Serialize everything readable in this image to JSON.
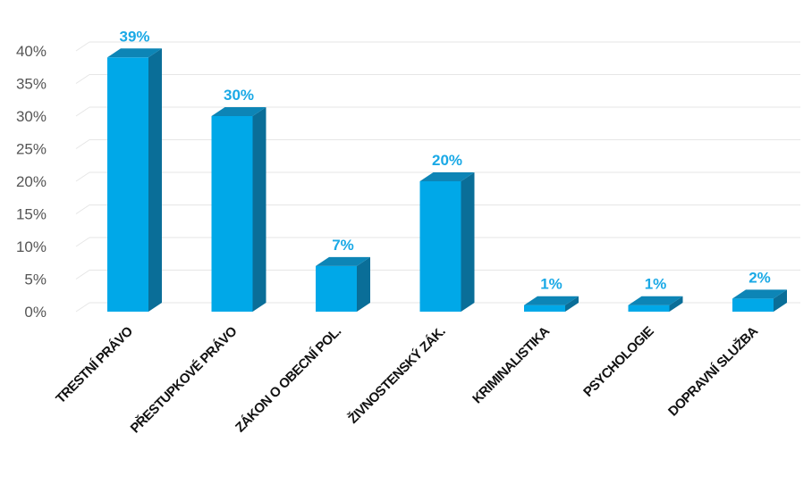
{
  "chart_data": {
    "type": "bar",
    "style": "3d-column",
    "categories": [
      "TRESTNÍ PRÁVO",
      "PŘESTUPKOVÉ PRÁVO",
      "ZÁKON O OBECNÍ POL.",
      "ŽIVNOSTENSKÝ ZÁK.",
      "KRIMINALISTIKA",
      "PSYCHOLOGIE",
      "DOPRAVNÍ SLUŽBA"
    ],
    "values": [
      39,
      30,
      7,
      20,
      1,
      1,
      2
    ],
    "value_labels": [
      "39%",
      "30%",
      "7%",
      "20%",
      "1%",
      "1%",
      "2%"
    ],
    "title": "",
    "xlabel": "",
    "ylabel": "",
    "ylim": [
      0,
      40
    ],
    "y_ticks": [
      0,
      5,
      10,
      15,
      20,
      25,
      30,
      35,
      40
    ],
    "y_tick_labels": [
      "0%",
      "5%",
      "10%",
      "15%",
      "20%",
      "25%",
      "30%",
      "35%",
      "40%"
    ],
    "grid": true,
    "legend": "none",
    "colors": {
      "bar_front": "#00a8e8",
      "bar_side": "#0a6e98",
      "bar_top": "#0d85b6",
      "data_label": "#1aa9e6",
      "grid": "#e6e6e6",
      "tick_label": "#555555",
      "category_label": "#111111"
    }
  }
}
